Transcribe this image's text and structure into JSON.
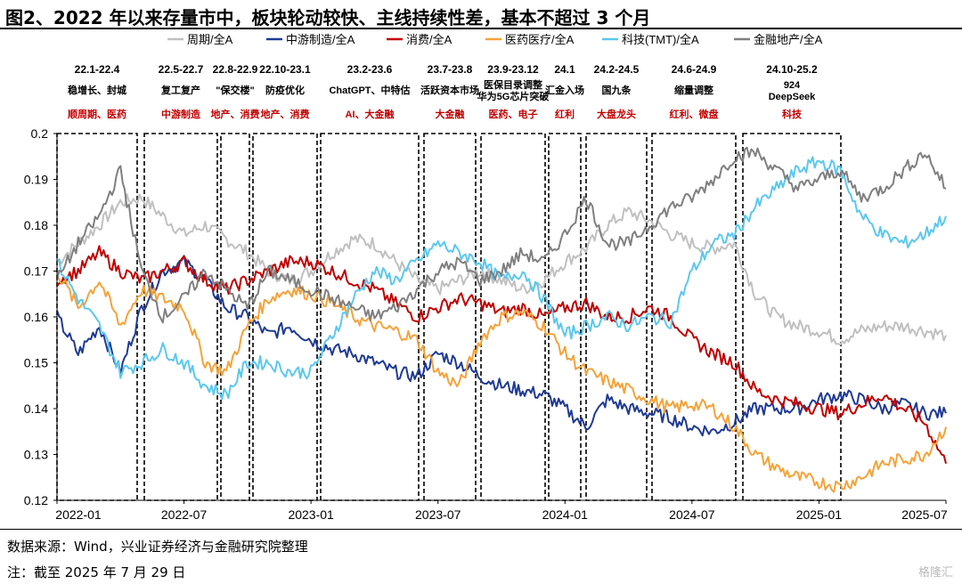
{
  "title": "图2、2022 年以来存量市中，板块轮动较快、主线持续性差，基本不超过 3 个月",
  "source": "数据来源：Wind，兴业证券经济与金融研究院整理",
  "note": "注：截至 2025 年 7 月 29 日",
  "watermark": "格隆汇",
  "chart_data": {
    "type": "line",
    "title": "",
    "xlabel": "",
    "ylabel": "",
    "ylim": [
      0.12,
      0.2
    ],
    "yticks": [
      "0.2",
      "0.19",
      "0.18",
      "0.17",
      "0.16",
      "0.15",
      "0.14",
      "0.13",
      "0.12"
    ],
    "xticks": [
      "2022-01",
      "2022-07",
      "2023-01",
      "2023-07",
      "2024-01",
      "2024-07",
      "2025-01",
      "2025-07"
    ],
    "grid": false,
    "legend": "top",
    "x": [
      "2022-01",
      "2022-02",
      "2022-03",
      "2022-04",
      "2022-05",
      "2022-06",
      "2022-07",
      "2022-08",
      "2022-09",
      "2022-10",
      "2022-11",
      "2022-12",
      "2023-01",
      "2023-02",
      "2023-03",
      "2023-04",
      "2023-05",
      "2023-06",
      "2023-07",
      "2023-08",
      "2023-09",
      "2023-10",
      "2023-11",
      "2023-12",
      "2024-01",
      "2024-02",
      "2024-03",
      "2024-04",
      "2024-05",
      "2024-06",
      "2024-07",
      "2024-08",
      "2024-09",
      "2024-10",
      "2024-11",
      "2024-12",
      "2025-01",
      "2025-02",
      "2025-03",
      "2025-04",
      "2025-05",
      "2025-06",
      "2025-07"
    ],
    "series": [
      {
        "name": "周期/全A",
        "color": "#c0c0c0",
        "values": [
          0.172,
          0.176,
          0.18,
          0.185,
          0.186,
          0.182,
          0.178,
          0.18,
          0.177,
          0.174,
          0.17,
          0.168,
          0.17,
          0.174,
          0.177,
          0.176,
          0.172,
          0.168,
          0.166,
          0.168,
          0.17,
          0.168,
          0.166,
          0.168,
          0.172,
          0.175,
          0.18,
          0.183,
          0.181,
          0.178,
          0.176,
          0.175,
          0.176,
          0.165,
          0.16,
          0.158,
          0.157,
          0.155,
          0.157,
          0.158,
          0.158,
          0.157,
          0.156
        ]
      },
      {
        "name": "中游制造/全A",
        "color": "#1f3a93",
        "values": [
          0.16,
          0.152,
          0.158,
          0.148,
          0.162,
          0.17,
          0.172,
          0.168,
          0.162,
          0.16,
          0.156,
          0.158,
          0.155,
          0.153,
          0.152,
          0.15,
          0.148,
          0.147,
          0.152,
          0.15,
          0.147,
          0.145,
          0.144,
          0.143,
          0.14,
          0.136,
          0.142,
          0.14,
          0.139,
          0.138,
          0.136,
          0.135,
          0.137,
          0.14,
          0.14,
          0.14,
          0.142,
          0.143,
          0.142,
          0.14,
          0.141,
          0.139,
          0.139
        ]
      },
      {
        "name": "消费/全A",
        "color": "#c00000",
        "values": [
          0.168,
          0.17,
          0.174,
          0.17,
          0.168,
          0.17,
          0.172,
          0.168,
          0.166,
          0.168,
          0.17,
          0.172,
          0.172,
          0.17,
          0.168,
          0.166,
          0.163,
          0.16,
          0.162,
          0.164,
          0.163,
          0.161,
          0.162,
          0.16,
          0.162,
          0.163,
          0.16,
          0.16,
          0.162,
          0.16,
          0.155,
          0.152,
          0.15,
          0.144,
          0.142,
          0.141,
          0.14,
          0.139,
          0.141,
          0.143,
          0.14,
          0.137,
          0.128
        ]
      },
      {
        "name": "医药医疗/全A",
        "color": "#f4a33a",
        "values": [
          0.17,
          0.162,
          0.168,
          0.158,
          0.166,
          0.164,
          0.162,
          0.15,
          0.148,
          0.158,
          0.164,
          0.166,
          0.165,
          0.163,
          0.16,
          0.158,
          0.157,
          0.155,
          0.148,
          0.145,
          0.155,
          0.16,
          0.161,
          0.158,
          0.152,
          0.148,
          0.146,
          0.144,
          0.142,
          0.14,
          0.141,
          0.14,
          0.136,
          0.13,
          0.127,
          0.125,
          0.124,
          0.123,
          0.125,
          0.128,
          0.129,
          0.13,
          0.136
        ]
      },
      {
        "name": "科技(TMT)/全A",
        "color": "#5bc8ee",
        "values": [
          0.172,
          0.164,
          0.158,
          0.148,
          0.15,
          0.153,
          0.15,
          0.145,
          0.143,
          0.15,
          0.15,
          0.148,
          0.148,
          0.156,
          0.164,
          0.17,
          0.168,
          0.172,
          0.176,
          0.174,
          0.172,
          0.168,
          0.17,
          0.164,
          0.156,
          0.158,
          0.16,
          0.158,
          0.16,
          0.159,
          0.17,
          0.176,
          0.178,
          0.184,
          0.188,
          0.192,
          0.194,
          0.192,
          0.182,
          0.178,
          0.176,
          0.178,
          0.182
        ]
      },
      {
        "name": "金融地产/全A",
        "color": "#7f7f7f",
        "values": [
          0.168,
          0.176,
          0.182,
          0.192,
          0.17,
          0.16,
          0.164,
          0.17,
          0.166,
          0.162,
          0.17,
          0.168,
          0.166,
          0.164,
          0.162,
          0.16,
          0.162,
          0.166,
          0.17,
          0.172,
          0.168,
          0.17,
          0.174,
          0.172,
          0.178,
          0.186,
          0.176,
          0.176,
          0.18,
          0.184,
          0.186,
          0.19,
          0.195,
          0.196,
          0.192,
          0.188,
          0.19,
          0.192,
          0.186,
          0.188,
          0.192,
          0.196,
          0.188
        ]
      }
    ],
    "periods": [
      {
        "dates": "22.1-22.4",
        "event": "稳增长、封城",
        "sector": "顺周期、医药"
      },
      {
        "dates": "22.5-22.7",
        "event": "复工复产",
        "sector": "中游制造"
      },
      {
        "dates": "22.8-22.9",
        "event": "\"保交楼\"",
        "sector": "地产、消费"
      },
      {
        "dates": "22.10-23.1",
        "event": "防疫优化",
        "sector": "地产、消费"
      },
      {
        "dates": "23.2-23.6",
        "event": "ChatGPT、中特估",
        "sector": "AI、大金融"
      },
      {
        "dates": "23.7-23.8",
        "event": "活跃资本市场",
        "sector": "大金融"
      },
      {
        "dates": "23.9-23.12",
        "event": "医保目录调整\n华为5G芯片突破",
        "sector": "医药、电子"
      },
      {
        "dates": "24.1",
        "event": "汇金入场",
        "sector": "红利"
      },
      {
        "dates": "24.2-24.5",
        "event": "国九条",
        "sector": "大盘龙头"
      },
      {
        "dates": "24.6-24.9",
        "event": "缩量调整",
        "sector": "红利、微盘"
      },
      {
        "dates": "24.10-25.2",
        "event": "924\nDeepSeek",
        "sector": "科技"
      }
    ]
  }
}
